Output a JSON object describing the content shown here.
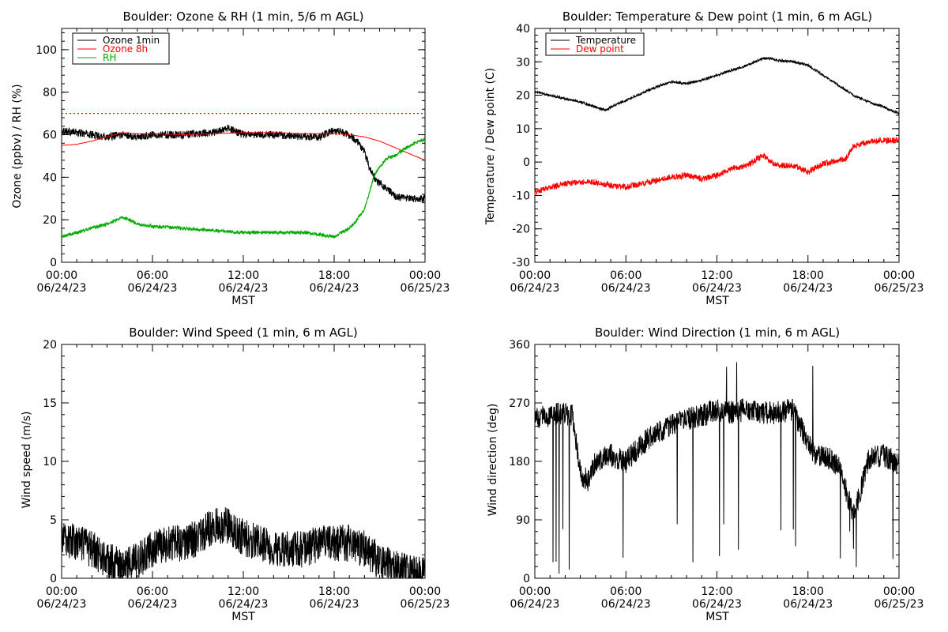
{
  "chart_data": [
    {
      "type": "line",
      "title": "Boulder: Ozone & RH (1 min, 5/6 m AGL)",
      "xlabel": "MST",
      "ylabel": "Ozone (ppbv) / RH (%)",
      "xlim": [
        "2023-06-24 00:00",
        "2023-06-25 00:00"
      ],
      "ylim": [
        0,
        110
      ],
      "y_ticks": [
        0,
        20,
        40,
        60,
        80,
        100
      ],
      "x_ticks": [
        {
          "time": "00:00",
          "date": "06/24/23"
        },
        {
          "time": "06:00",
          "date": "06/24/23"
        },
        {
          "time": "12:00",
          "date": "06/24/23"
        },
        {
          "time": "18:00",
          "date": "06/24/23"
        },
        {
          "time": "00:00",
          "date": "06/25/23"
        }
      ],
      "grid": false,
      "legend": "top-left",
      "reference_line": {
        "y": 70,
        "color": "#ff0000",
        "style": "dotted"
      },
      "series": [
        {
          "name": "Ozone 1min",
          "color": "#000000",
          "noise": 1.8,
          "x_hours": [
            0,
            1,
            2,
            3,
            4,
            5,
            6,
            8,
            10,
            11,
            12,
            14,
            16,
            17,
            18,
            19,
            19.5,
            20,
            20.3,
            20.8,
            21.5,
            22,
            23,
            24
          ],
          "values": [
            62,
            61,
            60,
            59,
            60,
            59,
            60,
            60,
            61,
            63,
            60,
            60,
            59,
            59,
            62,
            60,
            57,
            52,
            45,
            38,
            35,
            31,
            30,
            30
          ]
        },
        {
          "name": "Ozone 8h",
          "color": "#ff0000",
          "noise": 0,
          "x_hours": [
            0,
            1,
            2,
            3,
            4,
            5,
            6,
            8,
            10,
            12,
            14,
            16,
            18,
            19,
            20,
            21,
            22,
            23,
            24
          ],
          "values": [
            55,
            55.5,
            57,
            59,
            61,
            60.5,
            60.5,
            60,
            60.5,
            61,
            61,
            60.5,
            60.5,
            60,
            59,
            57,
            54,
            51,
            48
          ]
        },
        {
          "name": "RH",
          "color": "#00aa00",
          "noise": 0.8,
          "x_hours": [
            0,
            1,
            2,
            3,
            4,
            4.5,
            5,
            6,
            8,
            10,
            12,
            14,
            16,
            17,
            18,
            18.5,
            19,
            19.5,
            20,
            20.3,
            20.6,
            21,
            21.5,
            22,
            23,
            24
          ],
          "values": [
            12,
            14,
            16,
            18,
            21,
            20,
            18,
            17,
            16,
            15,
            14,
            14,
            14,
            13,
            12,
            14,
            16,
            20,
            25,
            32,
            40,
            45,
            49,
            50,
            55,
            58
          ]
        }
      ]
    },
    {
      "type": "line",
      "title": "Boulder: Temperature & Dew point (1 min, 6 m AGL)",
      "xlabel": "MST",
      "ylabel": "Temperature / Dew point (C)",
      "xlim": [
        "2023-06-24 00:00",
        "2023-06-25 00:00"
      ],
      "ylim": [
        -30,
        40
      ],
      "y_ticks": [
        -30,
        -20,
        -10,
        0,
        10,
        20,
        30,
        40
      ],
      "x_ticks": [
        {
          "time": "00:00",
          "date": "06/24/23"
        },
        {
          "time": "06:00",
          "date": "06/24/23"
        },
        {
          "time": "12:00",
          "date": "06/24/23"
        },
        {
          "time": "18:00",
          "date": "06/24/23"
        },
        {
          "time": "00:00",
          "date": "06/25/23"
        }
      ],
      "grid": false,
      "legend": "top-left",
      "series": [
        {
          "name": "Temperature",
          "color": "#000000",
          "noise": 0.35,
          "x_hours": [
            0,
            1,
            2,
            3,
            4,
            4.7,
            5,
            6,
            7,
            8,
            9,
            10,
            11,
            12,
            13,
            14,
            15,
            15.5,
            16,
            17,
            18,
            19,
            20,
            21,
            22,
            23,
            24
          ],
          "values": [
            21,
            20,
            19,
            18,
            16.5,
            15.5,
            16.5,
            18.5,
            20.5,
            22.5,
            24,
            23.5,
            24.5,
            26,
            27.5,
            29,
            31,
            31,
            30.5,
            30,
            29,
            26,
            23,
            20,
            18,
            16.5,
            14.5
          ]
        },
        {
          "name": "Dew point",
          "color": "#ff0000",
          "noise": 0.9,
          "x_hours": [
            0,
            1,
            2,
            3,
            4,
            5,
            6,
            7,
            8,
            9,
            10,
            11,
            12,
            13,
            14,
            15,
            16,
            17,
            18,
            19,
            20,
            20.5,
            21,
            22,
            23,
            24
          ],
          "values": [
            -9,
            -7.5,
            -6.5,
            -6,
            -6,
            -7,
            -7.5,
            -6.5,
            -5.5,
            -4.5,
            -4,
            -5,
            -4,
            -2,
            -1,
            2,
            -1,
            -1,
            -3,
            -0.5,
            0.5,
            1,
            5,
            6,
            6.5,
            6.5
          ]
        }
      ]
    },
    {
      "type": "line",
      "title": "Boulder: Wind Speed (1 min, 6 m AGL)",
      "xlabel": "MST",
      "ylabel": "Wind speed (m/s)",
      "xlim": [
        "2023-06-24 00:00",
        "2023-06-25 00:00"
      ],
      "ylim": [
        0,
        20
      ],
      "y_ticks": [
        0,
        5,
        10,
        15,
        20
      ],
      "x_ticks": [
        {
          "time": "00:00",
          "date": "06/24/23"
        },
        {
          "time": "06:00",
          "date": "06/24/23"
        },
        {
          "time": "12:00",
          "date": "06/24/23"
        },
        {
          "time": "18:00",
          "date": "06/24/23"
        },
        {
          "time": "00:00",
          "date": "06/25/23"
        }
      ],
      "grid": false,
      "series": [
        {
          "name": "",
          "color": "#000000",
          "noise": 1.6,
          "x_hours": [
            0,
            1,
            2,
            3,
            4,
            5,
            6,
            7,
            8,
            9,
            10,
            11,
            12,
            13,
            14,
            15,
            16,
            17,
            18,
            19,
            20,
            21,
            22,
            23,
            24
          ],
          "values": [
            3.5,
            3,
            2.5,
            1.5,
            1,
            1.5,
            2.5,
            3,
            3,
            3.5,
            4.5,
            4.5,
            3.5,
            3,
            2.5,
            2.5,
            2.5,
            3,
            3,
            3,
            2.5,
            1.5,
            0.8,
            0.4,
            0.3
          ]
        }
      ]
    },
    {
      "type": "line",
      "title": "Boulder: Wind Direction (1 min, 6 m AGL)",
      "xlabel": "MST",
      "ylabel": "Wind direction (deg)",
      "xlim": [
        "2023-06-24 00:00",
        "2023-06-25 00:00"
      ],
      "ylim": [
        0,
        360
      ],
      "y_ticks": [
        0,
        90,
        180,
        270,
        360
      ],
      "x_ticks": [
        {
          "time": "00:00",
          "date": "06/24/23"
        },
        {
          "time": "06:00",
          "date": "06/24/23"
        },
        {
          "time": "12:00",
          "date": "06/24/23"
        },
        {
          "time": "18:00",
          "date": "06/24/23"
        },
        {
          "time": "00:00",
          "date": "06/25/23"
        }
      ],
      "grid": false,
      "series": [
        {
          "name": "",
          "color": "#000000",
          "noise": 18,
          "x_hours": [
            0,
            1,
            2,
            2.5,
            3,
            3.5,
            4,
            5,
            6,
            7,
            8,
            9,
            10,
            11,
            12,
            13,
            14,
            15,
            16,
            17,
            18,
            18.5,
            19,
            20,
            20.5,
            21,
            22,
            23,
            24
          ],
          "values": [
            245,
            250,
            255,
            250,
            160,
            150,
            180,
            190,
            180,
            205,
            225,
            235,
            245,
            250,
            260,
            255,
            260,
            255,
            255,
            260,
            210,
            185,
            190,
            175,
            135,
            95,
            185,
            190,
            175
          ]
        }
      ]
    }
  ]
}
